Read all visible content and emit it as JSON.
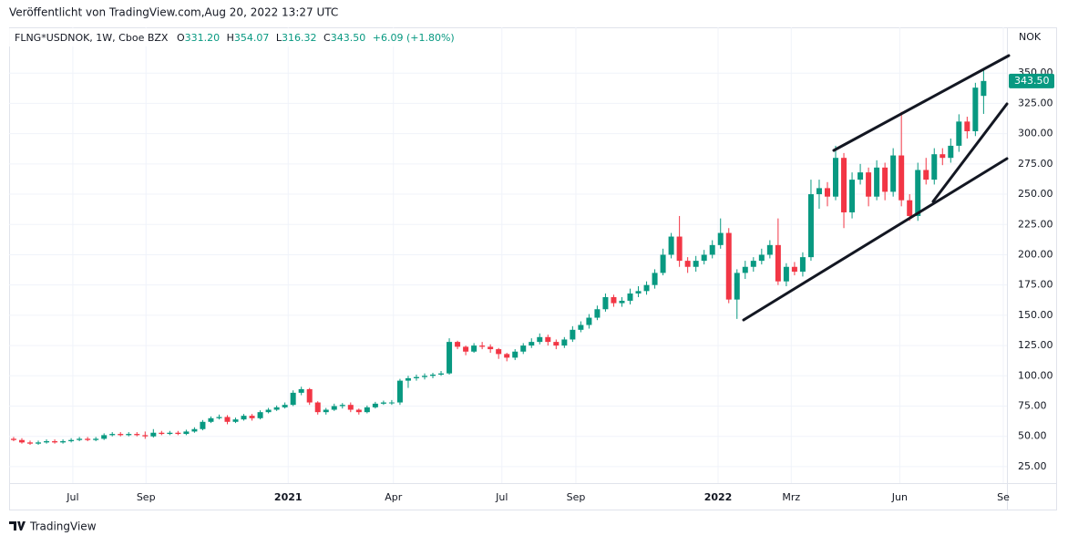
{
  "header": {
    "published": "Veröffentlicht von TradingView.com,Aug 20, 2022 13:27 UTC"
  },
  "legend": {
    "symbol": "FLNG*USDNOK, 1W, Cboe BZX",
    "o_key": "O",
    "open": "331.20",
    "h_key": "H",
    "high": "354.07",
    "l_key": "L",
    "low": "316.32",
    "c_key": "C",
    "close": "343.50",
    "change": "+6.09 (+1.80%)"
  },
  "footer": {
    "brand": "TradingView"
  },
  "chart_data": {
    "type": "candlestick",
    "unit": "NOK",
    "last_price_label": "343.50",
    "up_color": "#089981",
    "down_color": "#f23645",
    "grid": true,
    "xlim": [
      -0.55,
      120.84
    ],
    "xticks": [
      {
        "value": 7.2,
        "label": "Jul"
      },
      {
        "value": 16.1,
        "label": "Sep"
      },
      {
        "value": 33.4,
        "label": "2021"
      },
      {
        "value": 46.2,
        "label": "Apr"
      },
      {
        "value": 59.4,
        "label": "Jul"
      },
      {
        "value": 68.4,
        "label": "Sep"
      },
      {
        "value": 85.7,
        "label": "2022"
      },
      {
        "value": 94.6,
        "label": "Mrz"
      },
      {
        "value": 107.8,
        "label": "Jun"
      },
      {
        "value": 120.4,
        "label": "Se"
      }
    ],
    "bold_xticks": [
      "2021",
      "2022"
    ],
    "ylim": [
      11.4,
      387.8
    ],
    "yticks": [
      {
        "value": 25,
        "label": "25.00"
      },
      {
        "value": 50,
        "label": "50.00"
      },
      {
        "value": 75,
        "label": "75.00"
      },
      {
        "value": 100,
        "label": "100.00"
      },
      {
        "value": 125,
        "label": "125.00"
      },
      {
        "value": 150,
        "label": "150.00"
      },
      {
        "value": 175,
        "label": "175.00"
      },
      {
        "value": 200,
        "label": "200.00"
      },
      {
        "value": 225,
        "label": "225.00"
      },
      {
        "value": 250,
        "label": "250.00"
      },
      {
        "value": 275,
        "label": "275.00"
      },
      {
        "value": 300,
        "label": "300.00"
      },
      {
        "value": 325,
        "label": "325.00"
      },
      {
        "value": 350,
        "label": "350.00"
      }
    ],
    "ohlc": [
      [
        48,
        49.5,
        46,
        47
      ],
      [
        47,
        48.5,
        44,
        45
      ],
      [
        45,
        46.5,
        43,
        44
      ],
      [
        44,
        46.5,
        43,
        45
      ],
      [
        45,
        47.5,
        44,
        46
      ],
      [
        46,
        47.5,
        44,
        45
      ],
      [
        45,
        47.5,
        44,
        46
      ],
      [
        46,
        48.5,
        45,
        47
      ],
      [
        47,
        49.5,
        46,
        48
      ],
      [
        48,
        49.5,
        46,
        47
      ],
      [
        47,
        49.5,
        46,
        48
      ],
      [
        48,
        52.5,
        47,
        51
      ],
      [
        51,
        53.5,
        50,
        52
      ],
      [
        52,
        53.5,
        50,
        51
      ],
      [
        51,
        53.5,
        50,
        52
      ],
      [
        52,
        53.5,
        50,
        51
      ],
      [
        51,
        54,
        48,
        50
      ],
      [
        50,
        56,
        49,
        53
      ],
      [
        53,
        54.5,
        51,
        52
      ],
      [
        52,
        54.5,
        51,
        53
      ],
      [
        53,
        54.5,
        51,
        52
      ],
      [
        52,
        55.5,
        51,
        54
      ],
      [
        54,
        57.5,
        53,
        56
      ],
      [
        56,
        63.5,
        55,
        62
      ],
      [
        62,
        66.5,
        61,
        65
      ],
      [
        65,
        68,
        64,
        66
      ],
      [
        66,
        67.5,
        60,
        62
      ],
      [
        62,
        65.5,
        61,
        64
      ],
      [
        64,
        68.5,
        63,
        67
      ],
      [
        67,
        68.5,
        63,
        65
      ],
      [
        65,
        71.5,
        64,
        70
      ],
      [
        70,
        73.5,
        69,
        72
      ],
      [
        72,
        75.5,
        71,
        74
      ],
      [
        74,
        78,
        73,
        76
      ],
      [
        76,
        88,
        75,
        86
      ],
      [
        86,
        91,
        84,
        89
      ],
      [
        89,
        90,
        76,
        78
      ],
      [
        78,
        79,
        68,
        70
      ],
      [
        70,
        73.5,
        68,
        72
      ],
      [
        72,
        77,
        71,
        75
      ],
      [
        75,
        77.5,
        73,
        76
      ],
      [
        76,
        78,
        70,
        72
      ],
      [
        72,
        73,
        68,
        70
      ],
      [
        70,
        75.5,
        69,
        74
      ],
      [
        74,
        78.5,
        73,
        77
      ],
      [
        77,
        79.5,
        76,
        78
      ],
      [
        78,
        80,
        76,
        78
      ],
      [
        78,
        97.5,
        76,
        96
      ],
      [
        96,
        100,
        90,
        98
      ],
      [
        98,
        101,
        96,
        99
      ],
      [
        99,
        102,
        97,
        100
      ],
      [
        100,
        102.5,
        98,
        101
      ],
      [
        101,
        104,
        100,
        102
      ],
      [
        102,
        131,
        101,
        128
      ],
      [
        128,
        129,
        122,
        124
      ],
      [
        124,
        125,
        117,
        120
      ],
      [
        120,
        127,
        119,
        125
      ],
      [
        125,
        128,
        122,
        124
      ],
      [
        124,
        126,
        119,
        122
      ],
      [
        122,
        123,
        114,
        118
      ],
      [
        118,
        119,
        112,
        115
      ],
      [
        115,
        122,
        113,
        120
      ],
      [
        120,
        127,
        118,
        125
      ],
      [
        125,
        131,
        123,
        128
      ],
      [
        128,
        135,
        126,
        132
      ],
      [
        132,
        134,
        125,
        128
      ],
      [
        128,
        130,
        122,
        125
      ],
      [
        125,
        132,
        123,
        130
      ],
      [
        130,
        141,
        128,
        138
      ],
      [
        138,
        145,
        136,
        142
      ],
      [
        142,
        151,
        139,
        148
      ],
      [
        148,
        158,
        146,
        155
      ],
      [
        155,
        168,
        153,
        165
      ],
      [
        165,
        167,
        157,
        160
      ],
      [
        160,
        165,
        157,
        162
      ],
      [
        162,
        172,
        159,
        168
      ],
      [
        168,
        174,
        165,
        170
      ],
      [
        170,
        178,
        167,
        175
      ],
      [
        175,
        188,
        172,
        185
      ],
      [
        185,
        205,
        183,
        200
      ],
      [
        200,
        218,
        197,
        215
      ],
      [
        215,
        232,
        190,
        195
      ],
      [
        195,
        198,
        185,
        190
      ],
      [
        190,
        199,
        186,
        195
      ],
      [
        195,
        204,
        192,
        200
      ],
      [
        200,
        212,
        197,
        208
      ],
      [
        208,
        230,
        205,
        218
      ],
      [
        218,
        222,
        160,
        163
      ],
      [
        163,
        188,
        147,
        185
      ],
      [
        185,
        195,
        180,
        190
      ],
      [
        190,
        198,
        186,
        195
      ],
      [
        195,
        205,
        192,
        200
      ],
      [
        200,
        212,
        197,
        208
      ],
      [
        208,
        230,
        175,
        178
      ],
      [
        178,
        193,
        174,
        190
      ],
      [
        190,
        194,
        183,
        186
      ],
      [
        186,
        202,
        182,
        198
      ],
      [
        198,
        262,
        195,
        250
      ],
      [
        250,
        262,
        238,
        255
      ],
      [
        255,
        260,
        240,
        248
      ],
      [
        248,
        290,
        245,
        280
      ],
      [
        280,
        284,
        222,
        235
      ],
      [
        235,
        268,
        230,
        262
      ],
      [
        262,
        275,
        258,
        268
      ],
      [
        268,
        272,
        240,
        248
      ],
      [
        248,
        278,
        245,
        272
      ],
      [
        272,
        276,
        245,
        252
      ],
      [
        252,
        288,
        248,
        282
      ],
      [
        282,
        318,
        240,
        245
      ],
      [
        245,
        250,
        228,
        232
      ],
      [
        232,
        276,
        228,
        270
      ],
      [
        270,
        280,
        258,
        262
      ],
      [
        262,
        288,
        258,
        283
      ],
      [
        283,
        288,
        274,
        280
      ],
      [
        280,
        296,
        276,
        290
      ],
      [
        290,
        316,
        285,
        310
      ],
      [
        310,
        314,
        296,
        302
      ],
      [
        302,
        342,
        298,
        338
      ],
      [
        331.2,
        354.07,
        316.32,
        343.5
      ]
    ]
  }
}
